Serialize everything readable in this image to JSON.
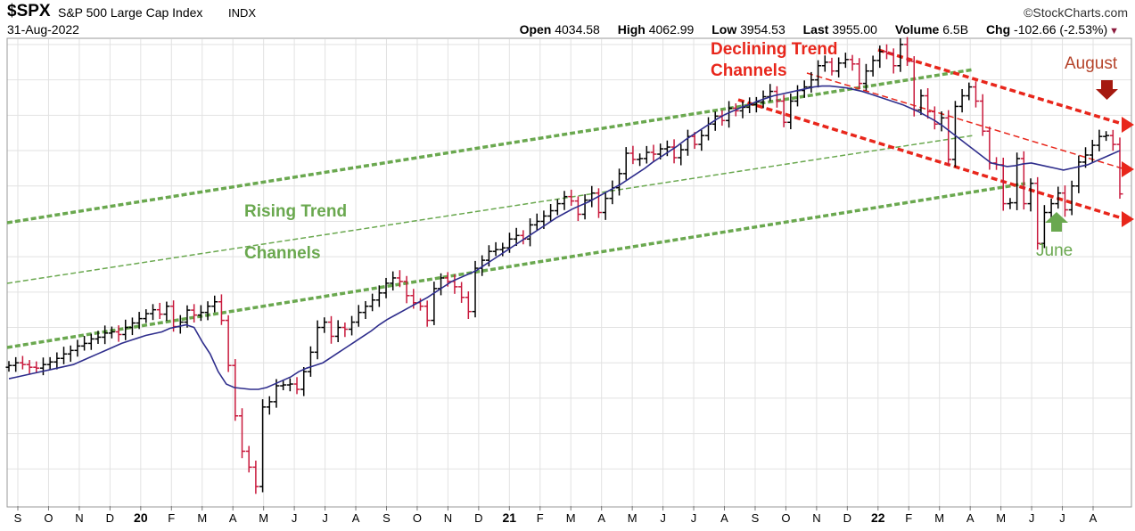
{
  "header": {
    "ticker": "$SPX",
    "name": "S&P 500 Large Cap Index",
    "exchange": "INDX",
    "date": "31-Aug-2022",
    "brand": "©StockCharts.com",
    "quote": {
      "open_label": "Open",
      "open": "4034.58",
      "high_label": "High",
      "high": "4062.99",
      "low_label": "Low",
      "low": "3954.53",
      "last_label": "Last",
      "last": "3955.00",
      "volume_label": "Volume",
      "volume": "6.5B",
      "chg_label": "Chg",
      "chg": "-102.66 (-2.53%)"
    },
    "down_icon": "triangle-down-icon"
  },
  "chart_data": {
    "type": "line",
    "price_type": "weekly-ohlc-bars",
    "x_ticks": [
      "S",
      "O",
      "N",
      "D",
      "20",
      "F",
      "M",
      "A",
      "M",
      "J",
      "J",
      "A",
      "S",
      "O",
      "N",
      "D",
      "21",
      "F",
      "M",
      "A",
      "M",
      "J",
      "J",
      "A",
      "S",
      "O",
      "N",
      "D",
      "22",
      "F",
      "M",
      "A",
      "M",
      "J",
      "J",
      "A"
    ],
    "series": [
      {
        "values": [
          2985,
          3000,
          2990,
          2975,
          2970,
          2990,
          3005,
          3025,
          3050,
          3070,
          3095,
          3110,
          3135,
          3145,
          3168,
          3175,
          3160,
          3200,
          3225,
          3250,
          3278,
          3300,
          3275,
          3320,
          3205,
          3230,
          3298,
          3270,
          3285,
          3320,
          3345,
          3240,
          2985,
          2700,
          2500,
          2410,
          2300,
          2750,
          2780,
          2870,
          2875,
          2880,
          2850,
          2950,
          3060,
          3200,
          3230,
          3150,
          3200,
          3190,
          3230,
          3285,
          3320,
          3355,
          3395,
          3450,
          3480,
          3460,
          3380,
          3340,
          3320,
          3240,
          3420,
          3480,
          3460,
          3430,
          3370,
          3290,
          3535,
          3580,
          3630,
          3640,
          3650,
          3700,
          3720,
          3700,
          3780,
          3800,
          3830,
          3860,
          3900,
          3940,
          3915,
          3840,
          3920,
          3960,
          3850,
          3930,
          3990,
          4070,
          4185,
          4150,
          4155,
          4190,
          4180,
          4210,
          4220,
          4160,
          4205,
          4280,
          4235,
          4285,
          4350,
          4395,
          4370,
          4440,
          4425,
          4445,
          4460,
          4475,
          4505,
          4535,
          4480,
          4360,
          4480,
          4540,
          4560,
          4600,
          4680,
          4700,
          4650,
          4695,
          4715,
          4690,
          4580,
          4650,
          4710,
          4760,
          4750,
          4680,
          4800,
          4705,
          4430,
          4510,
          4420,
          4350,
          4385,
          4150,
          4450,
          4510,
          4560,
          4480,
          4310,
          4130,
          4120,
          3900,
          3905,
          4155,
          3900,
          4015,
          3675,
          3850,
          3900,
          3960,
          3865,
          4000,
          4135,
          4175,
          4230,
          4280,
          4285,
          4235,
          3955
        ]
      },
      {
        "values": [
          2910,
          2920,
          2930,
          2940,
          2950,
          2960,
          2970,
          2980,
          2990,
          3010,
          3030,
          3050,
          3070,
          3090,
          3110,
          3125,
          3140,
          3155,
          3165,
          3175,
          3195,
          3205,
          3215,
          3200,
          3120,
          3050,
          2950,
          2880,
          2860,
          2855,
          2850,
          2850,
          2860,
          2880,
          2900,
          2920,
          2950,
          2970,
          2985,
          3000,
          3030,
          3060,
          3090,
          3120,
          3150,
          3180,
          3215,
          3245,
          3270,
          3295,
          3320,
          3345,
          3370,
          3400,
          3430,
          3460,
          3480,
          3500,
          3520,
          3550,
          3580,
          3610,
          3640,
          3670,
          3700,
          3730,
          3760,
          3790,
          3820,
          3845,
          3870,
          3890,
          3910,
          3935,
          3960,
          3985,
          4010,
          4040,
          4070,
          4100,
          4135,
          4165,
          4195,
          4225,
          4260,
          4290,
          4320,
          4350,
          4380,
          4405,
          4425,
          4445,
          4460,
          4480,
          4495,
          4510,
          4520,
          4530,
          4540,
          4550,
          4560,
          4565,
          4565,
          4560,
          4555,
          4545,
          4535,
          4520,
          4505,
          4490,
          4475,
          4460,
          4440,
          4420,
          4395,
          4370,
          4340,
          4305,
          4270,
          4235,
          4200,
          4165,
          4130,
          4120,
          4110,
          4115,
          4125,
          4130,
          4120,
          4110,
          4100,
          4090,
          4100,
          4110,
          4120,
          4140,
          4160,
          4180,
          4200
        ]
      }
    ],
    "ylim": [
      2190,
      4830
    ],
    "grid": true,
    "annotations": [
      {
        "text": "Declining Trend",
        "color": "#e8261b"
      },
      {
        "text": "Channels",
        "color": "#e8261b"
      },
      {
        "text": "Rising Trend",
        "color": "#6aa84f"
      },
      {
        "text": "Channels",
        "color": "#6aa84f"
      },
      {
        "text": "August",
        "color": "#b5442b"
      },
      {
        "text": "June",
        "color": "#6aa84f"
      }
    ],
    "colors": {
      "up_bar": "#000000",
      "down_bar": "#c8193c",
      "ma": "#2e2d8c",
      "rising_channel": "#6aa84f",
      "declining_channel": "#e8261b",
      "grid": "#e2e2e2"
    }
  }
}
